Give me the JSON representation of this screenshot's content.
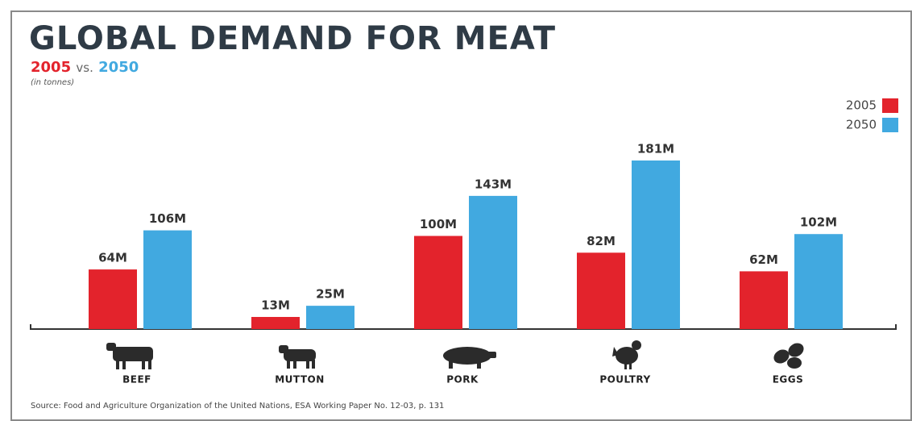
{
  "chart_data": {
    "type": "bar",
    "title": "GLOBAL DEMAND FOR MEAT",
    "subtitle_parts": [
      "2005",
      "vs.",
      "2050"
    ],
    "note": "(in tonnes)",
    "source": "Source: Food and Agriculture Organization of the United Nations, ESA Working Paper No. 12-03, p. 131",
    "categories": [
      "BEEF",
      "MUTTON",
      "PORK",
      "POULTRY",
      "EGGS"
    ],
    "legend": "top-right",
    "series": [
      {
        "name": "2005",
        "color": "#e3232c",
        "values": [
          64000000,
          13000000,
          100000000,
          82000000,
          62000000
        ],
        "value_labels": [
          "64M",
          "13M",
          "100M",
          "82M",
          "62M"
        ]
      },
      {
        "name": "2050",
        "color": "#41a9e0",
        "values": [
          106000000,
          25000000,
          143000000,
          181000000,
          102000000
        ],
        "value_labels": [
          "106M",
          "25M",
          "143M",
          "181M",
          "102M"
        ]
      }
    ]
  }
}
